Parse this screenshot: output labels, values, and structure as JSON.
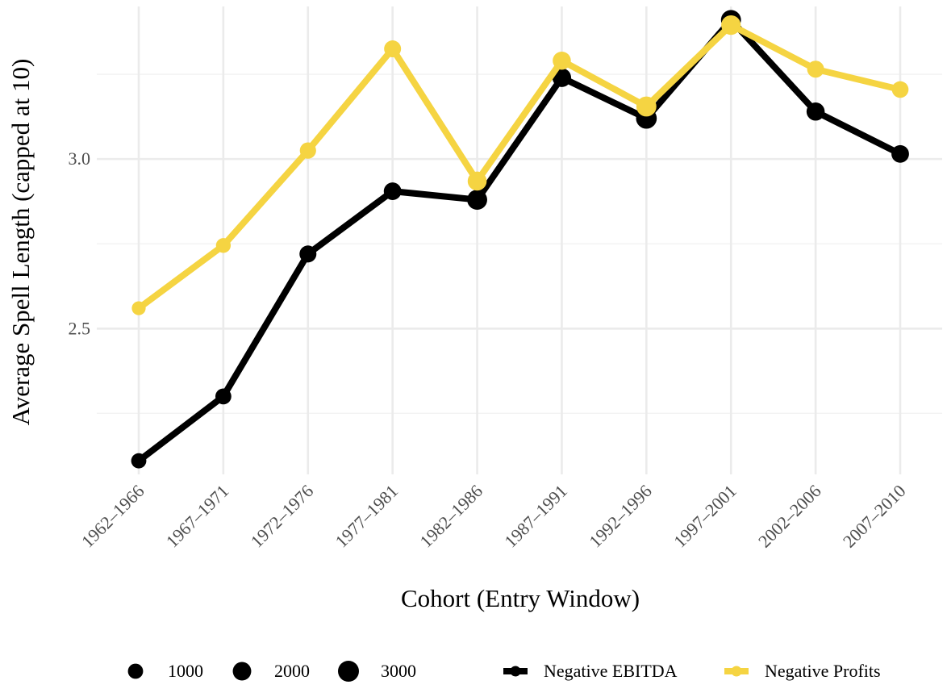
{
  "chart_data": {
    "type": "line",
    "xlabel": "Cohort (Entry Window)",
    "ylabel": "Average Spell Length (capped at 10)",
    "categories": [
      "1962–1966",
      "1967–1971",
      "1972–1976",
      "1977–1981",
      "1982–1986",
      "1987–1991",
      "1992–1996",
      "1997–2001",
      "2002–2006",
      "2007–2010"
    ],
    "ylim": [
      2.07,
      3.45
    ],
    "yticks": [
      2.5,
      3.0
    ],
    "ytick_labels": [
      "2.5",
      "3.0"
    ],
    "grid": true,
    "legend_position": "bottom",
    "series": [
      {
        "name": "Negative EBITDA",
        "color": "#000000",
        "values": [
          2.11,
          2.3,
          2.72,
          2.905,
          2.88,
          3.24,
          3.12,
          3.41,
          3.14,
          3.015
        ],
        "sizes": [
          1000,
          1200,
          1500,
          1700,
          2600,
          2100,
          2900,
          2600,
          1900,
          1700
        ]
      },
      {
        "name": "Negative Profits",
        "color": "#f5d442",
        "values": [
          2.56,
          2.745,
          3.025,
          3.325,
          2.935,
          3.29,
          3.155,
          3.395,
          3.265,
          3.205
        ],
        "sizes": [
          700,
          900,
          1300,
          1500,
          2200,
          1900,
          2600,
          2400,
          1500,
          1400
        ]
      }
    ],
    "size_legend": {
      "values": [
        1000,
        2000,
        3000
      ],
      "labels": [
        "1000",
        "2000",
        "3000"
      ]
    }
  }
}
